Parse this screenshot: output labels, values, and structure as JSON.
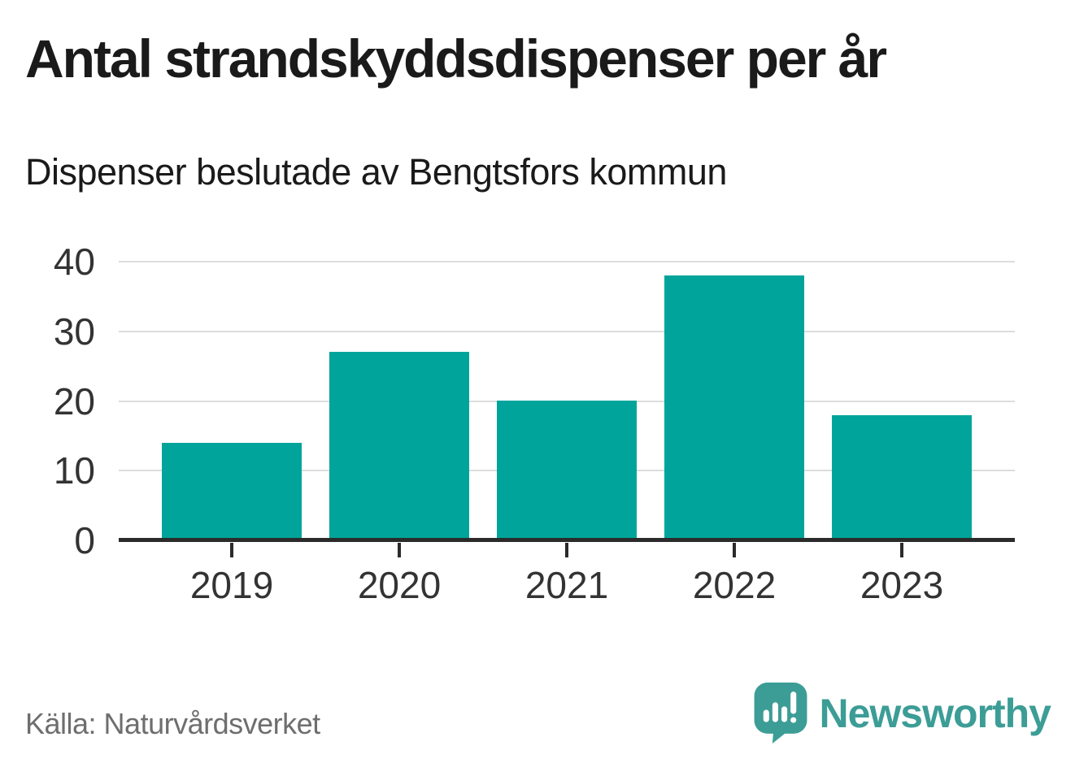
{
  "title": "Antal strandskyddsdispenser per år",
  "subtitle": "Dispenser beslutade av Bengtsfors kommun",
  "source": "Källa: Naturvårdsverket",
  "branding": {
    "name": "Newsworthy",
    "icon": "newsworthy-speech-bubble-bar-chart-icon"
  },
  "colors": {
    "bar": "#00a49b",
    "axis": "#2b2b2b",
    "gridline": "#dddddd",
    "axis_labels": "#333333",
    "title_text": "#1a1a1a",
    "source_text": "#6e6e6e",
    "brand_teal": "#3c9d96",
    "background": "#ffffff"
  },
  "chart_data": {
    "type": "bar",
    "categories": [
      "2019",
      "2020",
      "2021",
      "2022",
      "2023"
    ],
    "values": [
      14,
      27,
      20,
      38,
      18
    ],
    "title": "Antal strandskyddsdispenser per år",
    "subtitle": "Dispenser beslutade av Bengtsfors kommun",
    "xlabel": "",
    "ylabel": "",
    "ylim": [
      0,
      40
    ],
    "yticks": [
      0,
      10,
      20,
      30,
      40
    ],
    "grid": true,
    "legend": false,
    "bar_color": "#00a49b",
    "source": "Källa: Naturvårdsverket"
  }
}
